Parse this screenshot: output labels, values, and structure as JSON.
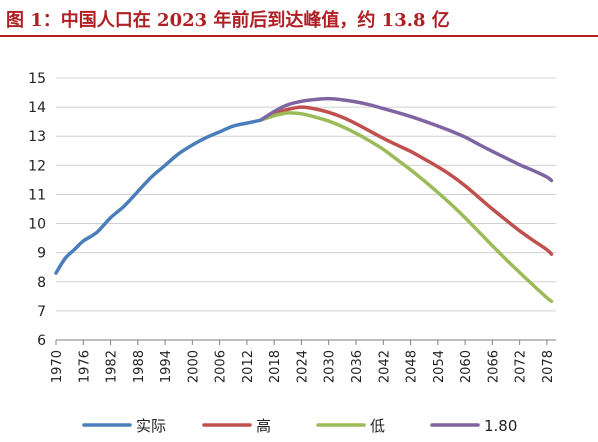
{
  "header": {
    "title": "图 1：中国人口在 2023 年前后到达峰值，约 13.8 亿"
  },
  "chart_data": {
    "type": "line",
    "title": "图 1：中国人口在 2023 年前后到达峰值，约 13.8 亿",
    "xlabel": "",
    "ylabel": "",
    "xlim": [
      1970,
      2080
    ],
    "ylim": [
      6,
      15
    ],
    "yticks": [
      6,
      7,
      8,
      9,
      10,
      11,
      12,
      13,
      14,
      15
    ],
    "xticks": [
      1970,
      1976,
      1982,
      1988,
      1994,
      2000,
      2006,
      2012,
      2018,
      2024,
      2030,
      2036,
      2042,
      2048,
      2054,
      2060,
      2066,
      2072,
      2078
    ],
    "grid": "horizontal",
    "legend_position": "bottom",
    "series": [
      {
        "name": "实际",
        "color": "#4a7ebb",
        "points": [
          [
            1970,
            8.3
          ],
          [
            1972,
            8.8
          ],
          [
            1974,
            9.1
          ],
          [
            1976,
            9.4
          ],
          [
            1979,
            9.7
          ],
          [
            1982,
            10.2
          ],
          [
            1985,
            10.6
          ],
          [
            1988,
            11.1
          ],
          [
            1991,
            11.6
          ],
          [
            1994,
            12.0
          ],
          [
            1997,
            12.4
          ],
          [
            2000,
            12.7
          ],
          [
            2003,
            12.95
          ],
          [
            2006,
            13.15
          ],
          [
            2009,
            13.35
          ],
          [
            2012,
            13.45
          ],
          [
            2015,
            13.55
          ]
        ]
      },
      {
        "name": "高",
        "color": "#c0504d",
        "points": [
          [
            2015,
            13.55
          ],
          [
            2018,
            13.78
          ],
          [
            2021,
            13.92
          ],
          [
            2024,
            14.0
          ],
          [
            2027,
            13.94
          ],
          [
            2030,
            13.82
          ],
          [
            2033,
            13.65
          ],
          [
            2036,
            13.43
          ],
          [
            2039,
            13.18
          ],
          [
            2042,
            12.93
          ],
          [
            2045,
            12.7
          ],
          [
            2048,
            12.48
          ],
          [
            2051,
            12.22
          ],
          [
            2054,
            11.95
          ],
          [
            2057,
            11.65
          ],
          [
            2060,
            11.3
          ],
          [
            2063,
            10.9
          ],
          [
            2066,
            10.5
          ],
          [
            2069,
            10.12
          ],
          [
            2072,
            9.75
          ],
          [
            2075,
            9.42
          ],
          [
            2078,
            9.1
          ],
          [
            2079,
            8.95
          ]
        ]
      },
      {
        "name": "低",
        "color": "#9bbb59",
        "points": [
          [
            2015,
            13.55
          ],
          [
            2018,
            13.7
          ],
          [
            2021,
            13.8
          ],
          [
            2024,
            13.77
          ],
          [
            2027,
            13.66
          ],
          [
            2030,
            13.52
          ],
          [
            2033,
            13.33
          ],
          [
            2036,
            13.1
          ],
          [
            2039,
            12.84
          ],
          [
            2042,
            12.55
          ],
          [
            2045,
            12.2
          ],
          [
            2048,
            11.85
          ],
          [
            2051,
            11.47
          ],
          [
            2054,
            11.07
          ],
          [
            2057,
            10.65
          ],
          [
            2060,
            10.2
          ],
          [
            2063,
            9.72
          ],
          [
            2066,
            9.24
          ],
          [
            2069,
            8.77
          ],
          [
            2072,
            8.32
          ],
          [
            2075,
            7.88
          ],
          [
            2078,
            7.45
          ],
          [
            2079,
            7.33
          ]
        ]
      },
      {
        "name": "1.80",
        "color": "#8064a2",
        "points": [
          [
            2015,
            13.55
          ],
          [
            2018,
            13.85
          ],
          [
            2021,
            14.08
          ],
          [
            2024,
            14.2
          ],
          [
            2027,
            14.26
          ],
          [
            2030,
            14.29
          ],
          [
            2033,
            14.25
          ],
          [
            2036,
            14.18
          ],
          [
            2039,
            14.08
          ],
          [
            2042,
            13.95
          ],
          [
            2045,
            13.82
          ],
          [
            2048,
            13.68
          ],
          [
            2051,
            13.52
          ],
          [
            2054,
            13.35
          ],
          [
            2057,
            13.17
          ],
          [
            2060,
            12.97
          ],
          [
            2063,
            12.72
          ],
          [
            2066,
            12.48
          ],
          [
            2069,
            12.25
          ],
          [
            2072,
            12.02
          ],
          [
            2075,
            11.82
          ],
          [
            2078,
            11.6
          ],
          [
            2079,
            11.48
          ]
        ]
      }
    ]
  }
}
